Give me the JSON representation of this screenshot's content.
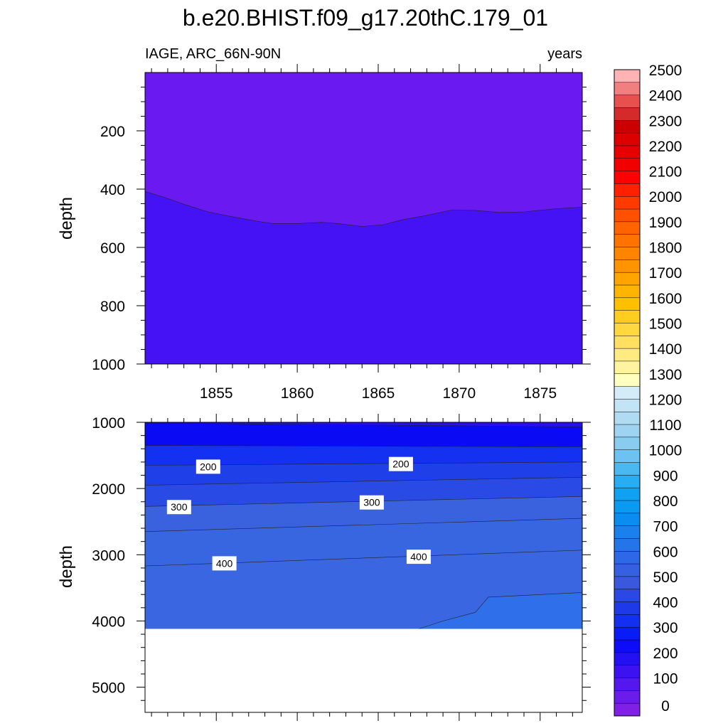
{
  "title": "b.e20.BHIST.f09_g17.20thC.179_01",
  "chart_data": [
    {
      "type": "contour",
      "panel": "upper",
      "left_label": "IAGE, ARC_66N-90N",
      "right_label": "years",
      "ylabel": "depth",
      "xlabel": "",
      "xlim": [
        1850.6,
        1877.6
      ],
      "ylim": [
        1000,
        0
      ],
      "x_ticks": [
        1855,
        1860,
        1865,
        1870,
        1875
      ],
      "x_tick_labels": [
        "1855",
        "1860",
        "1865",
        "1870",
        "1875"
      ],
      "y_ticks": [
        200,
        400,
        600,
        800,
        1000
      ],
      "y_tick_labels": [
        "200",
        "400",
        "600",
        "800",
        "1000"
      ],
      "filled_levels": [
        {
          "range": [
            0,
            50
          ],
          "color": "#6a1af0"
        },
        {
          "range": [
            50,
            100
          ],
          "color": "#4512f5"
        }
      ],
      "contour_50_depth": {
        "x": [
          1850.6,
          1851.8,
          1853.0,
          1854.5,
          1856.0,
          1857.5,
          1858.5,
          1860.0,
          1861.5,
          1862.5,
          1864.0,
          1865.3,
          1866.5,
          1868.0,
          1869.5,
          1871.0,
          1872.5,
          1874.0,
          1876.0,
          1877.6
        ],
        "depth": [
          408,
          428,
          452,
          478,
          495,
          510,
          518,
          518,
          514,
          518,
          528,
          522,
          505,
          490,
          472,
          473,
          480,
          478,
          467,
          462
        ]
      }
    },
    {
      "type": "contour",
      "panel": "lower",
      "ylabel": "depth",
      "xlabel": "",
      "xlim": [
        1850.6,
        1877.6
      ],
      "ylim": [
        5380,
        1000
      ],
      "x_ticks": [
        1855,
        1860,
        1865,
        1870,
        1875
      ],
      "y_ticks": [
        1000,
        2000,
        3000,
        4000,
        5000
      ],
      "y_tick_labels": [
        "1000",
        "2000",
        "3000",
        "4000",
        "5000"
      ],
      "ocean_bottom_depth": 4120,
      "contour_lines": [
        {
          "level": 100,
          "depth_at_start": 1010,
          "depth_at_end": 1070,
          "color": "#1e05f5"
        },
        {
          "level": 150,
          "depth_at_start": 1350,
          "depth_at_end": 1370,
          "color": "#0a0af5"
        },
        {
          "level": 200,
          "depth_at_start": 1650,
          "depth_at_end": 1600,
          "color": "#1430f0"
        },
        {
          "level": 250,
          "depth_at_start": 1950,
          "depth_at_end": 1830,
          "color": "#1f40e8"
        },
        {
          "level": 300,
          "depth_at_start": 2270,
          "depth_at_end": 2120,
          "color": "#2a4ae5"
        },
        {
          "level": 350,
          "depth_at_start": 2650,
          "depth_at_end": 2450,
          "color": "#3a62df"
        },
        {
          "level": 400,
          "depth_at_start": 3170,
          "depth_at_end": 2930,
          "color": "#3866e0"
        }
      ],
      "contour_500": {
        "x": [
          1867.5,
          1869.0,
          1871.0,
          1871.8,
          1877.6
        ],
        "depth": [
          4120,
          4000,
          3870,
          3640,
          3570
        ],
        "color": "#2f70ea"
      },
      "contour_labels": [
        {
          "text": "200",
          "x": 1854.5,
          "depth": 1670
        },
        {
          "text": "200",
          "x": 1866.4,
          "depth": 1630
        },
        {
          "text": "300",
          "x": 1852.7,
          "depth": 2280
        },
        {
          "text": "300",
          "x": 1864.6,
          "depth": 2210
        },
        {
          "text": "400",
          "x": 1855.5,
          "depth": 3130
        },
        {
          "text": "400",
          "x": 1867.5,
          "depth": 3030
        }
      ]
    }
  ],
  "colorbar": {
    "labels": [
      "0",
      "100",
      "200",
      "300",
      "400",
      "500",
      "600",
      "700",
      "800",
      "900",
      "1000",
      "1100",
      "1200",
      "1300",
      "1400",
      "1500",
      "1600",
      "1700",
      "1800",
      "1900",
      "2000",
      "2100",
      "2200",
      "2300",
      "2400",
      "2500"
    ],
    "colors": [
      "#ffb3b3",
      "#f08080",
      "#e85050",
      "#d42a2a",
      "#cc0000",
      "#dd0000",
      "#e60000",
      "#f20000",
      "#ff0000",
      "#ff2000",
      "#ff3a00",
      "#ff5000",
      "#ff6400",
      "#ff7400",
      "#ff8400",
      "#ff9400",
      "#ffa400",
      "#ffb400",
      "#ffc000",
      "#ffcc20",
      "#ffd840",
      "#ffe060",
      "#ffeb80",
      "#fff3a0",
      "#ffffc0",
      "#d4ecf7",
      "#c2e4f5",
      "#b0dcf3",
      "#9ed4f1",
      "#88ccf0",
      "#6cc2f0",
      "#4cb8f0",
      "#28acf2",
      "#10a2f2",
      "#0a9af2",
      "#0a8cf0",
      "#1a80ee",
      "#2474ec",
      "#2c68e8",
      "#3560e2",
      "#3a58de",
      "#2a48e6",
      "#1e3ae8",
      "#1230f0",
      "#0a1cf5",
      "#0c0cf8",
      "#2410f5",
      "#3c12f2",
      "#5418ee",
      "#6a1cea",
      "#8020e6"
    ]
  }
}
